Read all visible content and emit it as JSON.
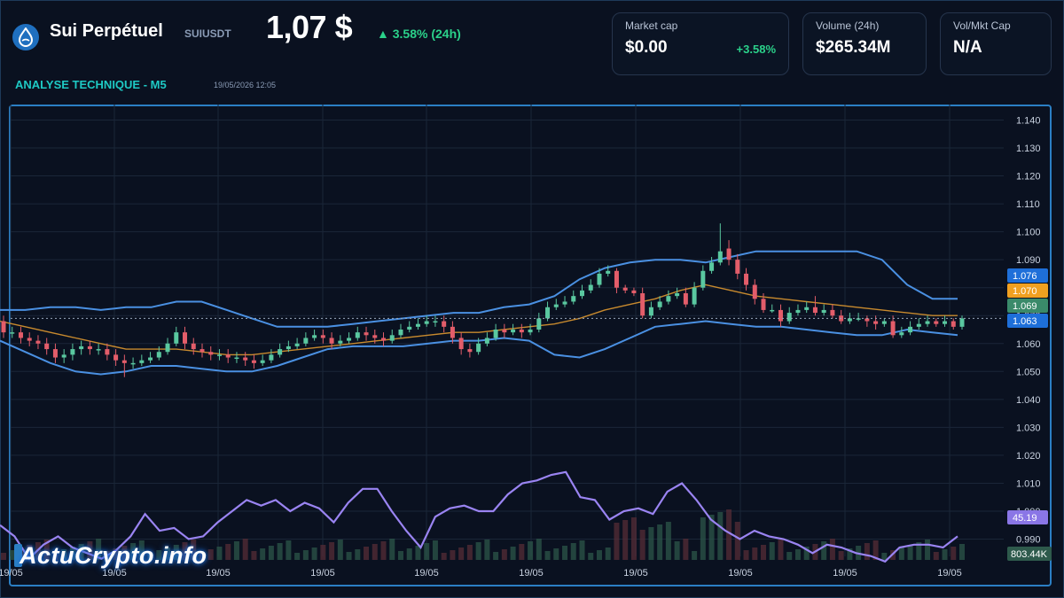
{
  "header": {
    "coin_name": "Sui Perpétuel",
    "symbol": "SUIUSDT",
    "price": "1,07 $",
    "change": "▲ 3.58% (24h)",
    "analysis_label": "ANALYSE TECHNIQUE - M5",
    "timestamp": "19/05/2026 12:05",
    "icon": "sui-drop-icon"
  },
  "cards": {
    "market_cap": {
      "label": "Market cap",
      "value": "$0.00",
      "change": "+3.58%"
    },
    "volume": {
      "label": "Volume (24h)",
      "value": "$265.34M"
    },
    "vol_mkt": {
      "label": "Vol/Mkt Cap",
      "value": "N/A"
    }
  },
  "logo": {
    "text": "ActuCrypto.info"
  },
  "colors": {
    "up": "#5ac8a0",
    "down": "#e35d6a",
    "bollinger": "#4a90e2",
    "ma": "#c88a2e",
    "rsi": "#9a84f2",
    "accent": "#2bd18a",
    "badge_upper": "#1e6fd9",
    "badge_ma": "#f0a020",
    "badge_price": "#3a8a6a",
    "badge_rsi": "#8a76e6"
  },
  "chart_data": {
    "type": "candlestick",
    "y_ticks": [
      "1.140",
      "1.130",
      "1.120",
      "1.110",
      "1.100",
      "1.090",
      "1.080",
      "1.070",
      "1.060",
      "1.050",
      "1.040",
      "1.030",
      "1.020",
      "1.010",
      "1.000",
      "0.990"
    ],
    "ylim": [
      0.987,
      1.143
    ],
    "x_ticks": [
      "19/05",
      "19/05",
      "19/05",
      "19/05",
      "19/05",
      "19/05",
      "19/05",
      "19/05",
      "19/05",
      "19/05"
    ],
    "price_badges": {
      "upper_band": "1.076",
      "ma": "1.070",
      "last_price": "1.069",
      "lower_band": "1.063"
    },
    "rsi_badge": "45.19",
    "volume_badge": "803.44K",
    "candles": [
      [
        1.068,
        1.064,
        1.07,
        1.062
      ],
      [
        1.064,
        1.064,
        1.066,
        1.062
      ],
      [
        1.064,
        1.062,
        1.066,
        1.06
      ],
      [
        1.062,
        1.061,
        1.064,
        1.059
      ],
      [
        1.061,
        1.06,
        1.063,
        1.058
      ],
      [
        1.06,
        1.058,
        1.062,
        1.056
      ],
      [
        1.058,
        1.055,
        1.06,
        1.053
      ],
      [
        1.055,
        1.056,
        1.058,
        1.053
      ],
      [
        1.056,
        1.058,
        1.06,
        1.054
      ],
      [
        1.058,
        1.059,
        1.061,
        1.056
      ],
      [
        1.059,
        1.058,
        1.061,
        1.056
      ],
      [
        1.058,
        1.058,
        1.06,
        1.056
      ],
      [
        1.058,
        1.056,
        1.06,
        1.054
      ],
      [
        1.056,
        1.054,
        1.058,
        1.052
      ],
      [
        1.054,
        1.053,
        1.056,
        1.048
      ],
      [
        1.053,
        1.053,
        1.055,
        1.051
      ],
      [
        1.053,
        1.054,
        1.056,
        1.052
      ],
      [
        1.054,
        1.055,
        1.057,
        1.053
      ],
      [
        1.055,
        1.057,
        1.059,
        1.054
      ],
      [
        1.057,
        1.06,
        1.062,
        1.056
      ],
      [
        1.06,
        1.064,
        1.066,
        1.059
      ],
      [
        1.064,
        1.06,
        1.066,
        1.058
      ],
      [
        1.06,
        1.058,
        1.062,
        1.056
      ],
      [
        1.058,
        1.057,
        1.06,
        1.055
      ],
      [
        1.057,
        1.056,
        1.059,
        1.054
      ],
      [
        1.056,
        1.056,
        1.058,
        1.054
      ],
      [
        1.056,
        1.055,
        1.058,
        1.053
      ],
      [
        1.055,
        1.055,
        1.057,
        1.053
      ],
      [
        1.055,
        1.054,
        1.057,
        1.052
      ],
      [
        1.054,
        1.053,
        1.056,
        1.051
      ],
      [
        1.053,
        1.054,
        1.056,
        1.052
      ],
      [
        1.054,
        1.056,
        1.058,
        1.053
      ],
      [
        1.056,
        1.058,
        1.06,
        1.055
      ],
      [
        1.058,
        1.059,
        1.061,
        1.057
      ],
      [
        1.059,
        1.06,
        1.062,
        1.058
      ],
      [
        1.06,
        1.062,
        1.064,
        1.059
      ],
      [
        1.062,
        1.063,
        1.065,
        1.061
      ],
      [
        1.063,
        1.062,
        1.065,
        1.06
      ],
      [
        1.062,
        1.06,
        1.064,
        1.058
      ],
      [
        1.06,
        1.061,
        1.063,
        1.059
      ],
      [
        1.061,
        1.062,
        1.064,
        1.06
      ],
      [
        1.062,
        1.064,
        1.066,
        1.061
      ],
      [
        1.064,
        1.063,
        1.066,
        1.061
      ],
      [
        1.063,
        1.062,
        1.065,
        1.06
      ],
      [
        1.062,
        1.061,
        1.064,
        1.059
      ],
      [
        1.061,
        1.063,
        1.065,
        1.06
      ],
      [
        1.063,
        1.065,
        1.067,
        1.062
      ],
      [
        1.065,
        1.066,
        1.068,
        1.064
      ],
      [
        1.066,
        1.067,
        1.069,
        1.065
      ],
      [
        1.067,
        1.068,
        1.07,
        1.066
      ],
      [
        1.068,
        1.068,
        1.07,
        1.066
      ],
      [
        1.068,
        1.066,
        1.07,
        1.064
      ],
      [
        1.066,
        1.062,
        1.068,
        1.06
      ],
      [
        1.062,
        1.058,
        1.064,
        1.056
      ],
      [
        1.058,
        1.057,
        1.06,
        1.055
      ],
      [
        1.057,
        1.06,
        1.062,
        1.056
      ],
      [
        1.06,
        1.062,
        1.064,
        1.059
      ],
      [
        1.062,
        1.065,
        1.067,
        1.061
      ],
      [
        1.065,
        1.064,
        1.067,
        1.062
      ],
      [
        1.064,
        1.065,
        1.067,
        1.063
      ],
      [
        1.065,
        1.064,
        1.067,
        1.062
      ],
      [
        1.064,
        1.065,
        1.067,
        1.063
      ],
      [
        1.065,
        1.069,
        1.071,
        1.064
      ],
      [
        1.069,
        1.073,
        1.075,
        1.068
      ],
      [
        1.073,
        1.074,
        1.076,
        1.072
      ],
      [
        1.074,
        1.075,
        1.077,
        1.073
      ],
      [
        1.075,
        1.077,
        1.079,
        1.074
      ],
      [
        1.077,
        1.079,
        1.081,
        1.076
      ],
      [
        1.079,
        1.081,
        1.083,
        1.078
      ],
      [
        1.081,
        1.085,
        1.087,
        1.08
      ],
      [
        1.085,
        1.086,
        1.088,
        1.084
      ],
      [
        1.086,
        1.08,
        1.087,
        1.078
      ],
      [
        1.08,
        1.079,
        1.081,
        1.078
      ],
      [
        1.079,
        1.078,
        1.08,
        1.077
      ],
      [
        1.078,
        1.07,
        1.08,
        1.069
      ],
      [
        1.07,
        1.073,
        1.075,
        1.069
      ],
      [
        1.073,
        1.075,
        1.077,
        1.072
      ],
      [
        1.075,
        1.077,
        1.079,
        1.074
      ],
      [
        1.077,
        1.078,
        1.08,
        1.076
      ],
      [
        1.078,
        1.074,
        1.08,
        1.073
      ],
      [
        1.074,
        1.08,
        1.082,
        1.073
      ],
      [
        1.08,
        1.086,
        1.088,
        1.079
      ],
      [
        1.086,
        1.089,
        1.091,
        1.085
      ],
      [
        1.089,
        1.093,
        1.103,
        1.088
      ],
      [
        1.094,
        1.09,
        1.097,
        1.088
      ],
      [
        1.09,
        1.085,
        1.092,
        1.083
      ],
      [
        1.085,
        1.081,
        1.087,
        1.079
      ],
      [
        1.081,
        1.076,
        1.083,
        1.074
      ],
      [
        1.076,
        1.072,
        1.078,
        1.071
      ],
      [
        1.072,
        1.072,
        1.074,
        1.071
      ],
      [
        1.072,
        1.068,
        1.074,
        1.066
      ],
      [
        1.068,
        1.071,
        1.073,
        1.067
      ],
      [
        1.071,
        1.072,
        1.074,
        1.07
      ],
      [
        1.072,
        1.073,
        1.075,
        1.071
      ],
      [
        1.073,
        1.071,
        1.077,
        1.07
      ],
      [
        1.071,
        1.072,
        1.074,
        1.07
      ],
      [
        1.072,
        1.07,
        1.074,
        1.069
      ],
      [
        1.07,
        1.068,
        1.072,
        1.067
      ],
      [
        1.068,
        1.069,
        1.071,
        1.067
      ],
      [
        1.069,
        1.069,
        1.071,
        1.068
      ],
      [
        1.069,
        1.068,
        1.07,
        1.066
      ],
      [
        1.068,
        1.067,
        1.07,
        1.065
      ],
      [
        1.067,
        1.068,
        1.069,
        1.066
      ],
      [
        1.068,
        1.063,
        1.07,
        1.062
      ],
      [
        1.063,
        1.064,
        1.066,
        1.062
      ],
      [
        1.064,
        1.066,
        1.068,
        1.063
      ],
      [
        1.066,
        1.067,
        1.069,
        1.065
      ],
      [
        1.067,
        1.068,
        1.07,
        1.066
      ],
      [
        1.068,
        1.067,
        1.069,
        1.066
      ],
      [
        1.067,
        1.068,
        1.07,
        1.066
      ],
      [
        1.068,
        1.066,
        1.069,
        1.065
      ],
      [
        1.066,
        1.069,
        1.07,
        1.065
      ]
    ],
    "bollinger_upper": [
      1.072,
      1.072,
      1.073,
      1.073,
      1.072,
      1.073,
      1.073,
      1.075,
      1.075,
      1.072,
      1.069,
      1.066,
      1.066,
      1.066,
      1.067,
      1.068,
      1.069,
      1.07,
      1.071,
      1.071,
      1.073,
      1.074,
      1.077,
      1.083,
      1.087,
      1.089,
      1.09,
      1.09,
      1.089,
      1.091,
      1.093,
      1.093,
      1.093,
      1.093,
      1.093,
      1.09,
      1.081,
      1.076,
      1.076
    ],
    "bollinger_lower": [
      1.061,
      1.057,
      1.053,
      1.05,
      1.049,
      1.05,
      1.052,
      1.052,
      1.051,
      1.05,
      1.05,
      1.052,
      1.055,
      1.058,
      1.059,
      1.059,
      1.059,
      1.06,
      1.061,
      1.061,
      1.062,
      1.061,
      1.056,
      1.055,
      1.058,
      1.062,
      1.066,
      1.067,
      1.068,
      1.067,
      1.066,
      1.066,
      1.065,
      1.064,
      1.063,
      1.063,
      1.065,
      1.064,
      1.063
    ],
    "moving_average": [
      1.068,
      1.066,
      1.064,
      1.062,
      1.06,
      1.058,
      1.058,
      1.058,
      1.057,
      1.056,
      1.056,
      1.057,
      1.058,
      1.059,
      1.06,
      1.061,
      1.062,
      1.063,
      1.064,
      1.064,
      1.065,
      1.066,
      1.067,
      1.069,
      1.072,
      1.074,
      1.076,
      1.079,
      1.081,
      1.079,
      1.077,
      1.076,
      1.075,
      1.074,
      1.073,
      1.072,
      1.071,
      1.07,
      1.07
    ],
    "rsi": [
      0.995,
      0.991,
      0.983,
      0.988,
      0.991,
      0.987,
      0.985,
      0.983,
      0.986,
      0.991,
      0.999,
      0.993,
      0.994,
      0.99,
      0.991,
      0.996,
      1.0,
      1.004,
      1.002,
      1.004,
      1.0,
      1.003,
      1.001,
      0.996,
      1.003,
      1.008,
      1.008,
      1.0,
      0.993,
      0.987,
      0.998,
      1.001,
      1.002,
      1.0,
      1.0,
      1.006,
      1.01,
      1.011,
      1.013,
      1.014,
      1.005,
      1.004,
      0.997,
      1.0,
      1.001,
      0.999,
      1.007,
      1.01,
      1.004,
      0.997,
      0.993,
      0.99,
      0.993,
      0.991,
      0.99,
      0.988,
      0.985,
      0.988,
      0.987,
      0.985,
      0.984,
      0.982,
      0.987,
      0.988,
      0.988,
      0.987,
      0.991
    ]
  }
}
